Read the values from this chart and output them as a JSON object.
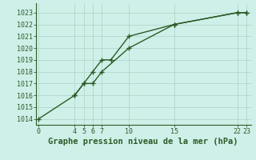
{
  "title": "Graphe pression niveau de la mer (hPa)",
  "bg_color": "#cff0e8",
  "line_color": "#2d5a27",
  "grid_color": "#b0d8cc",
  "line1_x": [
    0,
    4,
    5,
    6,
    7,
    10,
    15,
    22,
    23
  ],
  "line1_y": [
    1014,
    1016,
    1017,
    1017,
    1018,
    1020,
    1022,
    1023,
    1023
  ],
  "line2_x": [
    4,
    5,
    6,
    7,
    8,
    10,
    15,
    22,
    23
  ],
  "line2_y": [
    1016,
    1017,
    1018,
    1019,
    1019,
    1021,
    1022,
    1023,
    1023
  ],
  "x_ticks": [
    0,
    4,
    5,
    6,
    7,
    10,
    15,
    22,
    23
  ],
  "x_tick_labels": [
    "0",
    "4",
    "5",
    "6",
    "7",
    "10",
    "15",
    "22",
    "23"
  ],
  "y_ticks": [
    1014,
    1015,
    1016,
    1017,
    1018,
    1019,
    1020,
    1021,
    1022,
    1023
  ],
  "xlim": [
    -0.3,
    23.5
  ],
  "ylim": [
    1013.5,
    1023.8
  ],
  "marker": "+",
  "marker_size": 5,
  "line_width": 1.0,
  "title_fontsize": 7.5,
  "tick_fontsize": 6.0
}
